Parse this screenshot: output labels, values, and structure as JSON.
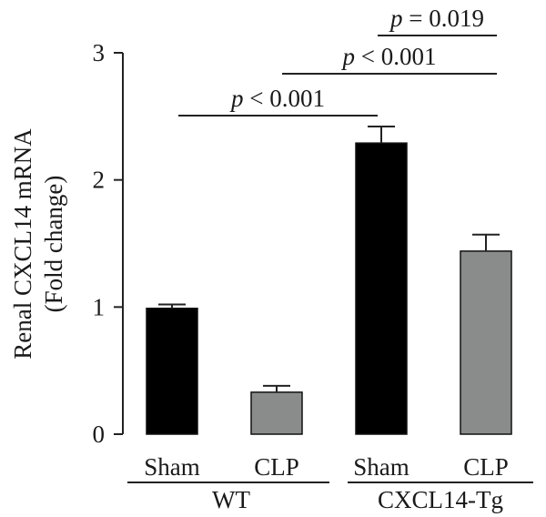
{
  "chart_data": {
    "type": "bar",
    "ylabel_line1": "Renal CXCL14 mRNA",
    "ylabel_line2": "(Fold change)",
    "ylim": [
      0,
      3
    ],
    "yticks": [
      "0",
      "1",
      "2",
      "3"
    ],
    "groups": [
      {
        "label": "WT"
      },
      {
        "label": "CXCL14-Tg"
      }
    ],
    "bars": [
      {
        "category": "Sham",
        "group": "WT",
        "value": 0.99,
        "error": 0.03,
        "color": "#000000"
      },
      {
        "category": "CLP",
        "group": "WT",
        "value": 0.33,
        "error": 0.05,
        "color": "#8a8c8c"
      },
      {
        "category": "Sham",
        "group": "CXCL14-Tg",
        "value": 2.29,
        "error": 0.13,
        "color": "#000000"
      },
      {
        "category": "CLP",
        "group": "CXCL14-Tg",
        "value": 1.44,
        "error": 0.13,
        "color": "#8a8c8c"
      }
    ],
    "comparisons": [
      {
        "text": "< 0.001",
        "from_bar": 0,
        "to_bar": 2
      },
      {
        "text": "< 0.001",
        "from_bar": 1,
        "to_bar": 3
      },
      {
        "text": "= 0.019",
        "from_bar": 2,
        "to_bar": 3
      }
    ],
    "significance_symbol": "p"
  }
}
